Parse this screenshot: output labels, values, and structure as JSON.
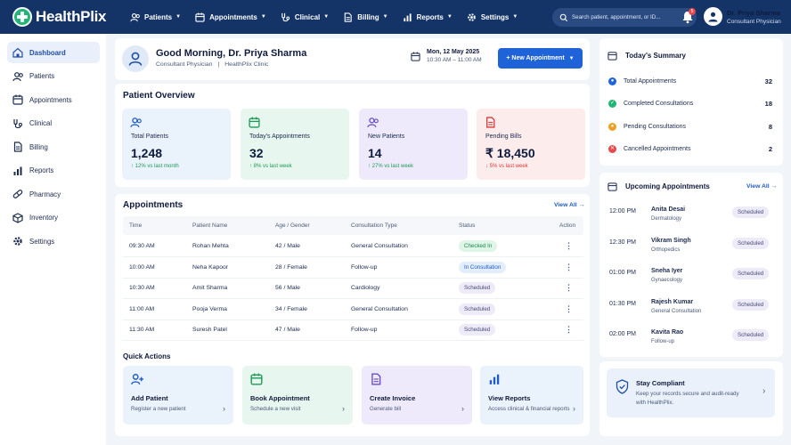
{
  "app": {
    "brand": "HealthPlix"
  },
  "topnav": [
    {
      "label": "Patients",
      "icon": "users-icon"
    },
    {
      "label": "Appointments",
      "icon": "calendar-icon"
    },
    {
      "label": "Clinical",
      "icon": "stethoscope-icon"
    },
    {
      "label": "Billing",
      "icon": "file-icon"
    },
    {
      "label": "Reports",
      "icon": "bar-chart-icon"
    },
    {
      "label": "Settings",
      "icon": "gear-icon"
    }
  ],
  "search": {
    "placeholder": "Search patient, appointment, or ID..."
  },
  "notifications": {
    "count": "5"
  },
  "user": {
    "name": "Dr. Priya Sharma",
    "role": "Consultant Physician"
  },
  "sidebar": {
    "items": [
      {
        "label": "Dashboard",
        "icon": "home-icon",
        "active": true
      },
      {
        "label": "Patients",
        "icon": "users-icon"
      },
      {
        "label": "Appointments",
        "icon": "calendar-icon"
      },
      {
        "label": "Clinical",
        "icon": "stethoscope-icon"
      },
      {
        "label": "Billing",
        "icon": "file-icon"
      },
      {
        "label": "Reports",
        "icon": "bar-chart-icon"
      },
      {
        "label": "Pharmacy",
        "icon": "pill-icon"
      },
      {
        "label": "Inventory",
        "icon": "box-icon"
      },
      {
        "label": "Settings",
        "icon": "gear-icon"
      }
    ]
  },
  "greeting": {
    "title": "Good Morning, Dr. Priya Sharma",
    "role": "Consultant Physician",
    "separator": "|",
    "clinic": "HealthPlix Clinic",
    "date": "Mon, 12 May 2025",
    "time": "10:30 AM – 11:00 AM",
    "new_button": "+ New Appointment"
  },
  "overview": {
    "title": "Patient Overview",
    "stats": [
      {
        "label": "Total Patients",
        "value": "1,248",
        "trend": "↑ 12% vs last month",
        "dir": "up",
        "bg": "#eaf2fc",
        "color": "#1f5bc4"
      },
      {
        "label": "Today's Appointments",
        "value": "32",
        "trend": "↑ 8% vs last week",
        "dir": "up",
        "bg": "#e7f6ee",
        "color": "#1c9a55"
      },
      {
        "label": "New Patients",
        "value": "14",
        "trend": "↑ 27% vs last week",
        "dir": "up",
        "bg": "#eeeafb",
        "color": "#6a4fc9"
      },
      {
        "label": "Pending Bills",
        "value": "₹ 18,450",
        "trend": "↓ 5% vs last week",
        "dir": "down",
        "bg": "#fcecec",
        "color": "#d93a3a"
      }
    ]
  },
  "appointments": {
    "title": "Appointments",
    "view_all": "View All →",
    "columns": [
      "Time",
      "Patient Name",
      "Age / Gender",
      "Consultation Type",
      "Status",
      "Action"
    ],
    "rows": [
      {
        "time": "09:30 AM",
        "name": "Rohan Mehta",
        "age": "42 / Male",
        "type": "General Consultation",
        "status": "Checked In",
        "kind": "checked"
      },
      {
        "time": "10:00 AM",
        "name": "Neha Kapoor",
        "age": "28 / Female",
        "type": "Follow-up",
        "status": "In Consultation",
        "kind": "consult"
      },
      {
        "time": "10:30 AM",
        "name": "Amit Sharma",
        "age": "56 / Male",
        "type": "Cardiology",
        "status": "Scheduled",
        "kind": "sched"
      },
      {
        "time": "11:00 AM",
        "name": "Pooja Verma",
        "age": "34 / Female",
        "type": "General Consultation",
        "status": "Scheduled",
        "kind": "sched"
      },
      {
        "time": "11:30 AM",
        "name": "Suresh Patel",
        "age": "47 / Male",
        "type": "Follow-up",
        "status": "Scheduled",
        "kind": "sched"
      }
    ],
    "action_glyph": "⋮"
  },
  "quick_actions": {
    "title": "Quick Actions",
    "items": [
      {
        "title": "Add Patient",
        "sub": "Register a new patient",
        "icon": "user-plus-icon",
        "bg": "#eaf2fc",
        "color": "#1f5bc4"
      },
      {
        "title": "Book Appointment",
        "sub": "Schedule a new visit",
        "icon": "calendar-icon",
        "bg": "#e7f6ee",
        "color": "#1c9a55"
      },
      {
        "title": "Create Invoice",
        "sub": "Generate bill",
        "icon": "file-icon",
        "bg": "#eeeafb",
        "color": "#6a4fc9"
      },
      {
        "title": "View Reports",
        "sub": "Access clinical & financial reports",
        "icon": "bar-chart-icon",
        "bg": "#eaf2fc",
        "color": "#1f5bc4"
      }
    ],
    "arrow": "›"
  },
  "summary": {
    "title": "Today's Summary",
    "rows": [
      {
        "label": "Total Appointments",
        "value": "32",
        "color": "#1f63d8",
        "glyph": "●"
      },
      {
        "label": "Completed Consultations",
        "value": "18",
        "color": "#22b573",
        "glyph": "✓"
      },
      {
        "label": "Pending Consultations",
        "value": "8",
        "color": "#f0a020",
        "glyph": "●"
      },
      {
        "label": "Cancelled Appointments",
        "value": "2",
        "color": "#e5484d",
        "glyph": "✕"
      }
    ]
  },
  "upcoming": {
    "title": "Upcoming Appointments",
    "view_all": "View All →",
    "rows": [
      {
        "time": "12:00 PM",
        "name": "Anita Desai",
        "dept": "Dermatology",
        "status": "Scheduled"
      },
      {
        "time": "12:30 PM",
        "name": "Vikram Singh",
        "dept": "Orthopedics",
        "status": "Scheduled"
      },
      {
        "time": "01:00 PM",
        "name": "Sneha Iyer",
        "dept": "Gynaecology",
        "status": "Scheduled"
      },
      {
        "time": "01:30 PM",
        "name": "Rajesh Kumar",
        "dept": "General Consultation",
        "status": "Scheduled"
      },
      {
        "time": "02:00 PM",
        "name": "Kavita Rao",
        "dept": "Follow-up",
        "status": "Scheduled"
      }
    ]
  },
  "compliance": {
    "title": "Stay Compliant",
    "text": "Keep your records secure and audit-ready with HealthPlix.",
    "arrow": "›"
  }
}
